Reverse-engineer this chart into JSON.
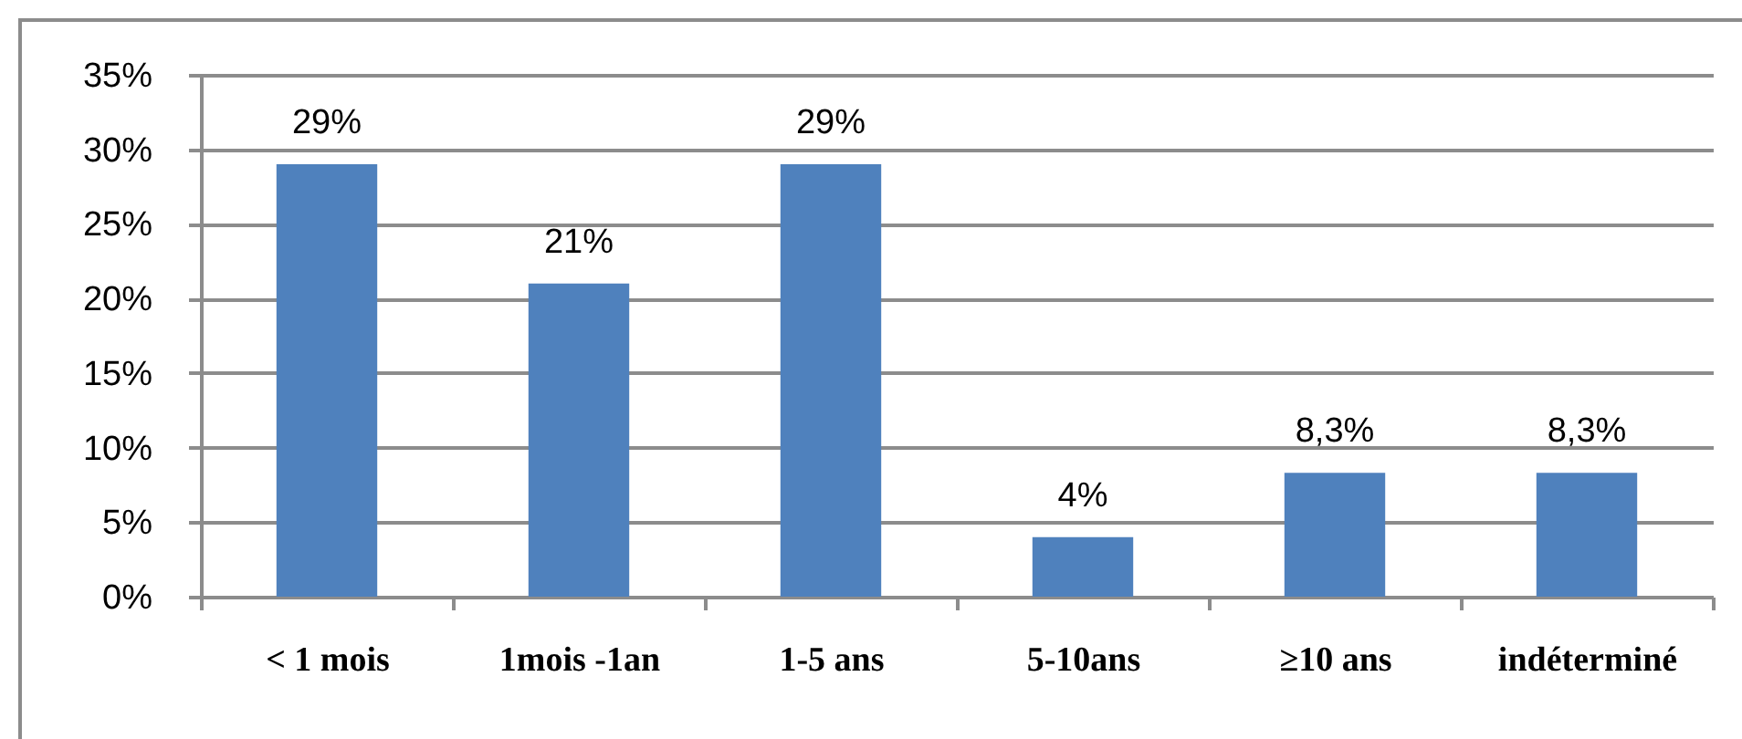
{
  "chart_data": {
    "type": "bar",
    "categories": [
      "< 1 mois",
      "1mois -1an",
      "1-5 ans",
      "5-10ans",
      "≥10 ans",
      "indéterminé"
    ],
    "values": [
      29,
      21,
      29,
      4,
      8.3,
      8.3
    ],
    "color": "#4f81bd",
    "value_labels": [
      "29%",
      "21%",
      "29%",
      "4%",
      "8,3%",
      "8,3%"
    ],
    "ylim": [
      0,
      35
    ],
    "yticks": [
      {
        "value": 0,
        "label": "0%"
      },
      {
        "value": 5,
        "label": "5%"
      },
      {
        "value": 10,
        "label": "10%"
      },
      {
        "value": 15,
        "label": "15%"
      },
      {
        "value": 20,
        "label": "20%"
      },
      {
        "value": 25,
        "label": "25%"
      },
      {
        "value": 30,
        "label": "30%"
      },
      {
        "value": 35,
        "label": "35%"
      }
    ],
    "grid": "y"
  }
}
